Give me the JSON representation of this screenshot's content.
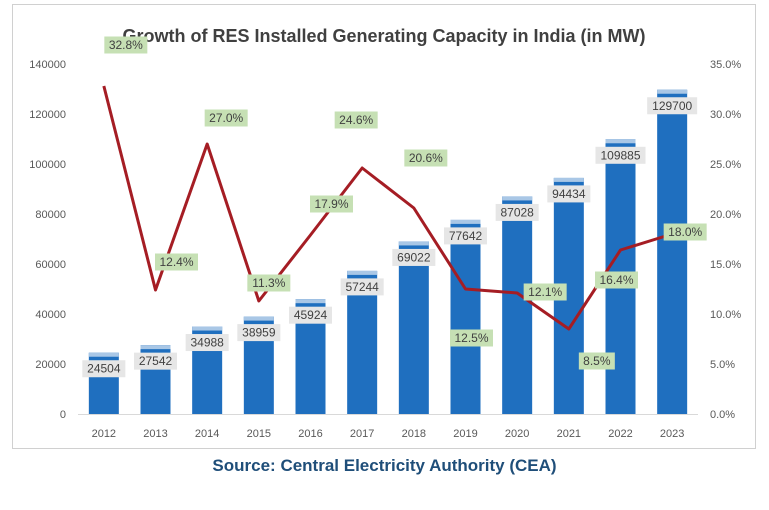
{
  "chart_data": {
    "type": "bar",
    "title": "Growth of RES Installed Generating Capacity in India (in MW)",
    "categories": [
      "2012",
      "2013",
      "2014",
      "2015",
      "2016",
      "2017",
      "2018",
      "2019",
      "2020",
      "2021",
      "2022",
      "2023"
    ],
    "series": [
      {
        "type": "bar",
        "axis": "left",
        "values": [
          24504,
          27542,
          34988,
          38959,
          45924,
          57244,
          69022,
          77642,
          87028,
          94434,
          109885,
          129700
        ],
        "labels": [
          "24504",
          "27542",
          "34988",
          "38959",
          "45924",
          "57244",
          "69022",
          "77642",
          "87028",
          "94434",
          "109885",
          "129700"
        ],
        "color": "#1f6fbf"
      },
      {
        "type": "line",
        "axis": "right",
        "values": [
          32.8,
          12.4,
          27.0,
          11.3,
          17.9,
          24.6,
          20.6,
          12.5,
          12.1,
          8.5,
          16.4,
          18.0
        ],
        "labels": [
          "32.8%",
          "12.4%",
          "27.0%",
          "11.3%",
          "17.9%",
          "24.6%",
          "20.6%",
          "12.5%",
          "12.1%",
          "8.5%",
          "16.4%",
          "18.0%"
        ],
        "color": "#a51d24"
      }
    ],
    "y_left": {
      "ylim": [
        0,
        140000
      ],
      "ticks": [
        "0",
        "20000",
        "40000",
        "60000",
        "80000",
        "100000",
        "120000",
        "140000"
      ]
    },
    "y_right": {
      "ylim": [
        0,
        35
      ],
      "ticks": [
        "0.0%",
        "5.0%",
        "10.0%",
        "15.0%",
        "20.0%",
        "25.0%",
        "30.0%",
        "35.0%"
      ]
    },
    "grid": false,
    "legend": "none",
    "colors": {
      "bar_cap": "#a9c7e6",
      "bar_label_bg": "#e6e6e6",
      "line_label_bg": "#c6e0b4",
      "axis_text": "#595959"
    }
  },
  "source": "Source: Central Electricity Authority (CEA)"
}
